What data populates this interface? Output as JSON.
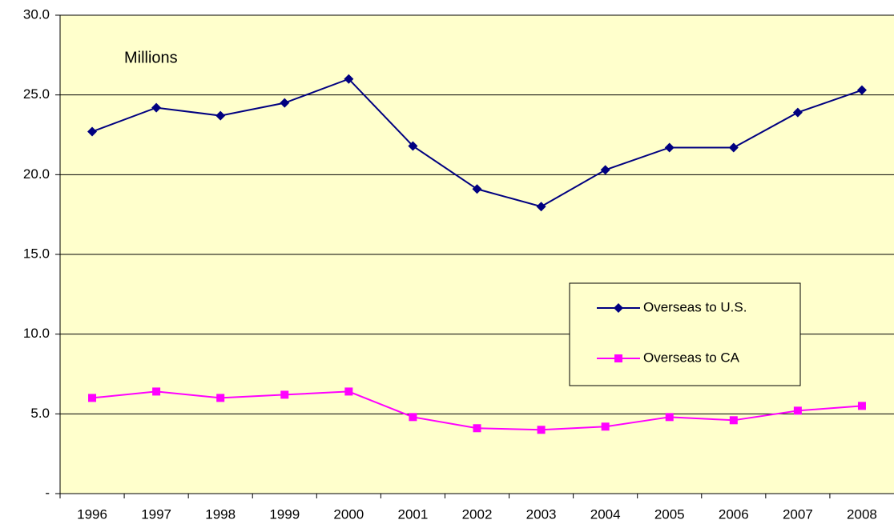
{
  "chart_data": {
    "type": "line",
    "annotation": "Millions",
    "categories": [
      "1996",
      "1997",
      "1998",
      "1999",
      "2000",
      "2001",
      "2002",
      "2003",
      "2004",
      "2005",
      "2006",
      "2007",
      "2008"
    ],
    "series": [
      {
        "name": "Overseas to U.S.",
        "color": "#000080",
        "marker": "diamond",
        "values": [
          22.7,
          24.2,
          23.7,
          24.5,
          26.0,
          21.8,
          19.1,
          18.0,
          20.3,
          21.7,
          21.7,
          23.9,
          25.3
        ]
      },
      {
        "name": "Overseas to CA",
        "color": "#ff00ff",
        "marker": "square",
        "values": [
          6.0,
          6.4,
          6.0,
          6.2,
          6.4,
          4.8,
          4.1,
          4.0,
          4.2,
          4.8,
          4.6,
          5.2,
          5.5
        ]
      }
    ],
    "ylim": [
      0,
      30
    ],
    "yticks": [
      {
        "value": 0,
        "label": "-"
      },
      {
        "value": 5,
        "label": "5.0"
      },
      {
        "value": 10,
        "label": "10.0"
      },
      {
        "value": 15,
        "label": "15.0"
      },
      {
        "value": 20,
        "label": "20.0"
      },
      {
        "value": 25,
        "label": "25.0"
      },
      {
        "value": 30,
        "label": "30.0"
      }
    ],
    "grid": true,
    "legend": "right",
    "background": "#ffffcc"
  }
}
